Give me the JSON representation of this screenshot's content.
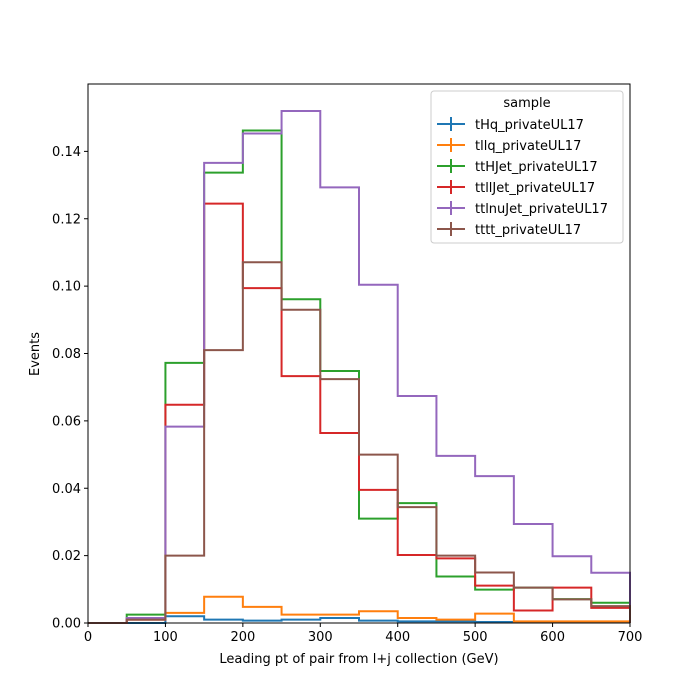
{
  "chart_data": {
    "type": "line",
    "style": "step-histogram",
    "xlabel": "Leading pt of pair from l+j collection (GeV)",
    "ylabel": "Events",
    "xlim": [
      0,
      700
    ],
    "ylim": [
      0,
      0.16
    ],
    "xticks": [
      0,
      100,
      200,
      300,
      400,
      500,
      600,
      700
    ],
    "yticks": [
      0.0,
      0.02,
      0.04,
      0.06,
      0.08,
      0.1,
      0.12,
      0.14
    ],
    "ytick_labels": [
      "0.00",
      "0.02",
      "0.04",
      "0.06",
      "0.08",
      "0.10",
      "0.12",
      "0.14"
    ],
    "grid": false,
    "legend": {
      "title": "sample",
      "placement": "upper right"
    },
    "bin_edges": [
      0,
      50,
      100,
      150,
      200,
      250,
      300,
      350,
      400,
      450,
      500,
      550,
      600,
      650,
      700
    ],
    "series": [
      {
        "name": "tHq_privateUL17",
        "color": "#1f77b4",
        "values": [
          0.0,
          0.0,
          0.002,
          0.001,
          0.0007,
          0.001,
          0.0015,
          0.0007,
          0.0005,
          0.0005,
          0.0003,
          0.0003,
          0.0003,
          0.0003
        ]
      },
      {
        "name": "tllq_privateUL17",
        "color": "#ff7f0e",
        "values": [
          0.0,
          0.001,
          0.003,
          0.0078,
          0.0048,
          0.0025,
          0.0025,
          0.0035,
          0.0015,
          0.001,
          0.0028,
          0.0005,
          0.0005,
          0.0005
        ]
      },
      {
        "name": "ttHJet_privateUL17",
        "color": "#2ca02c",
        "values": [
          0.0,
          0.0025,
          0.0772,
          0.1337,
          0.1462,
          0.0961,
          0.0748,
          0.031,
          0.0356,
          0.0138,
          0.0099,
          0.0105,
          0.0071,
          0.006
        ]
      },
      {
        "name": "ttllJet_privateUL17",
        "color": "#d62728",
        "values": [
          0.0,
          0.001,
          0.0648,
          0.1245,
          0.0994,
          0.0733,
          0.0564,
          0.0395,
          0.0202,
          0.0192,
          0.0111,
          0.0037,
          0.0105,
          0.0045
        ]
      },
      {
        "name": "ttlnuJet_privateUL17",
        "color": "#9467bd",
        "values": [
          0.0,
          0.0015,
          0.0583,
          0.1366,
          0.1453,
          0.152,
          0.1293,
          0.1004,
          0.0674,
          0.0496,
          0.0436,
          0.0294,
          0.0198,
          0.0149
        ]
      },
      {
        "name": "tttt_privateUL17",
        "color": "#8c564b",
        "values": [
          0.0,
          0.001,
          0.02,
          0.081,
          0.1071,
          0.093,
          0.0724,
          0.05,
          0.0344,
          0.02,
          0.015,
          0.0105,
          0.007,
          0.005
        ]
      }
    ]
  }
}
